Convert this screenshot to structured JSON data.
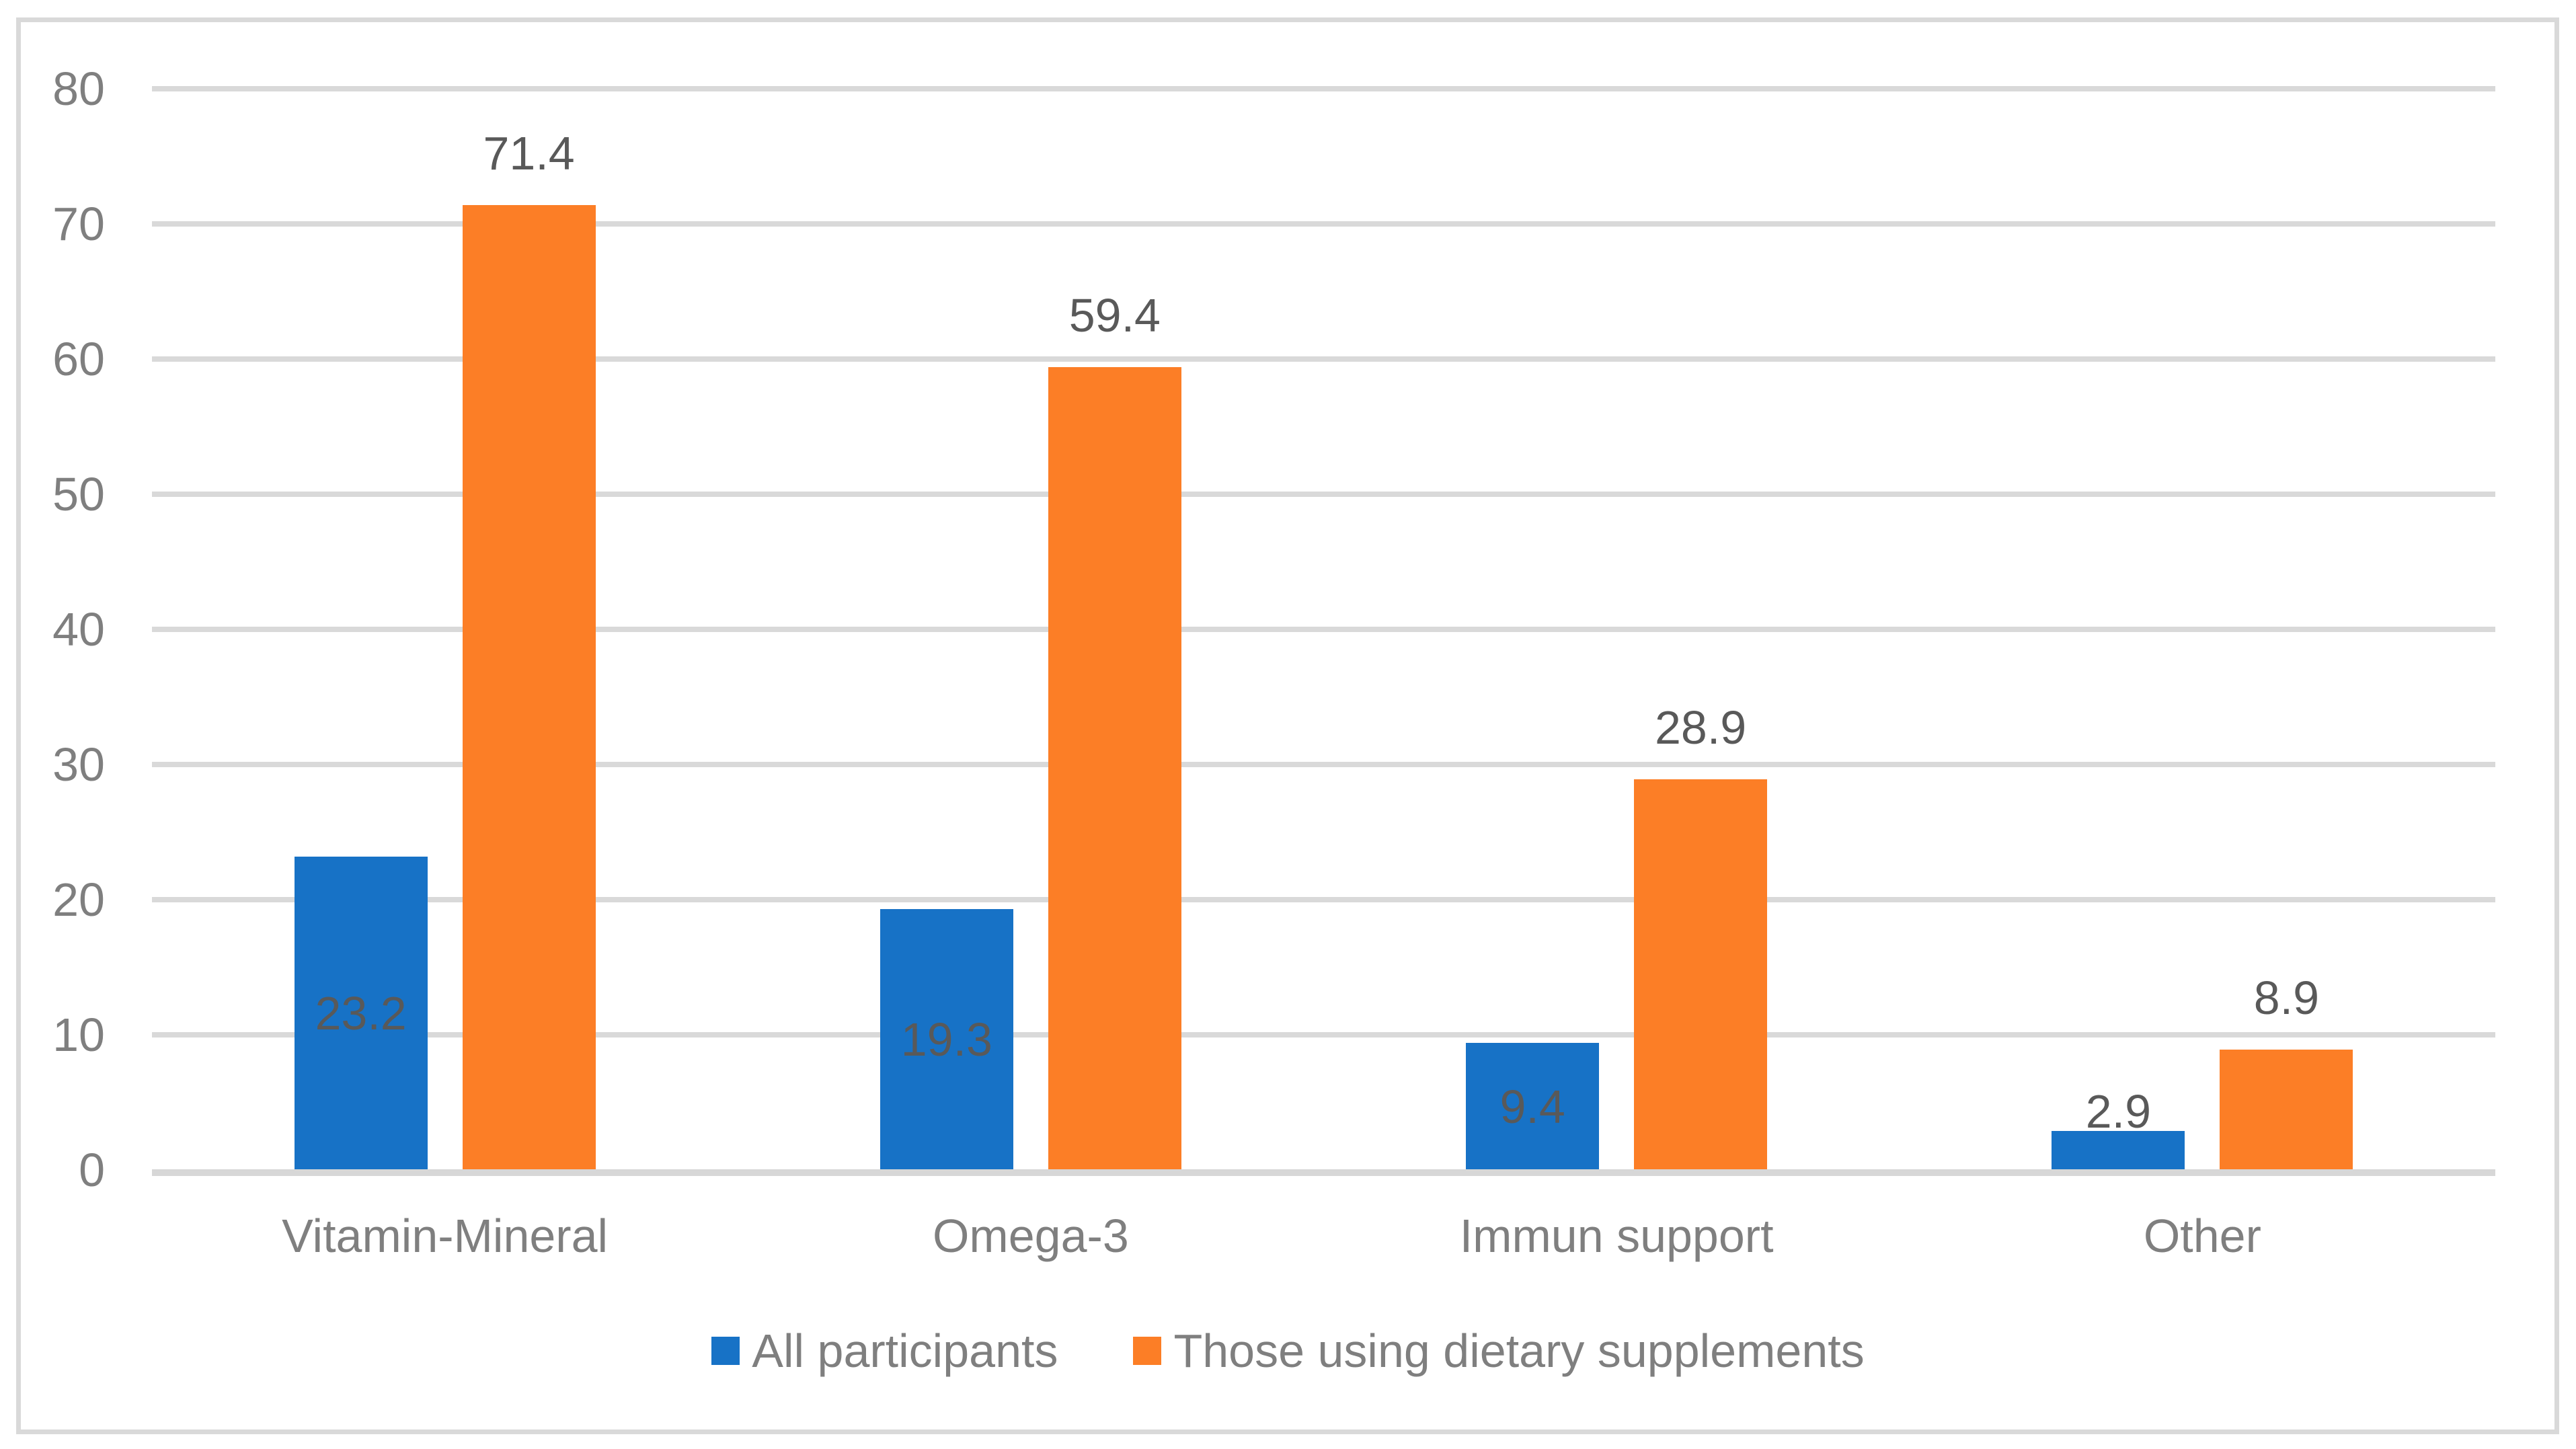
{
  "chart_data": {
    "type": "bar",
    "title": "",
    "categories": [
      "Vitamin-Mineral",
      "Omega-3",
      "Immun support",
      "Other"
    ],
    "series": [
      {
        "name": "All participants",
        "color": "#1772C6",
        "values": [
          23.2,
          19.3,
          9.4,
          2.9
        ],
        "label_placement": "inside-center"
      },
      {
        "name": "Those using dietary supplements",
        "color": "#FC7E26",
        "values": [
          71.4,
          59.4,
          28.9,
          8.9
        ],
        "label_placement": "outside-end"
      }
    ],
    "yticks": [
      0,
      10,
      20,
      30,
      40,
      50,
      60,
      70,
      80
    ],
    "ylim": [
      0,
      80
    ],
    "grid": true,
    "data_labels_shown": true,
    "legend_position": "bottom"
  },
  "styles": {
    "background": "#FFFFFF",
    "border_color": "#D9D9D9",
    "grid_color": "#D9D9D9",
    "axis_line_color": "#D7D7D7",
    "tick_label_color": "#7F7F7F",
    "category_label_color": "#7F7F7F",
    "data_label_color": "#595959",
    "legend_text_color": "#7F7F7F"
  }
}
